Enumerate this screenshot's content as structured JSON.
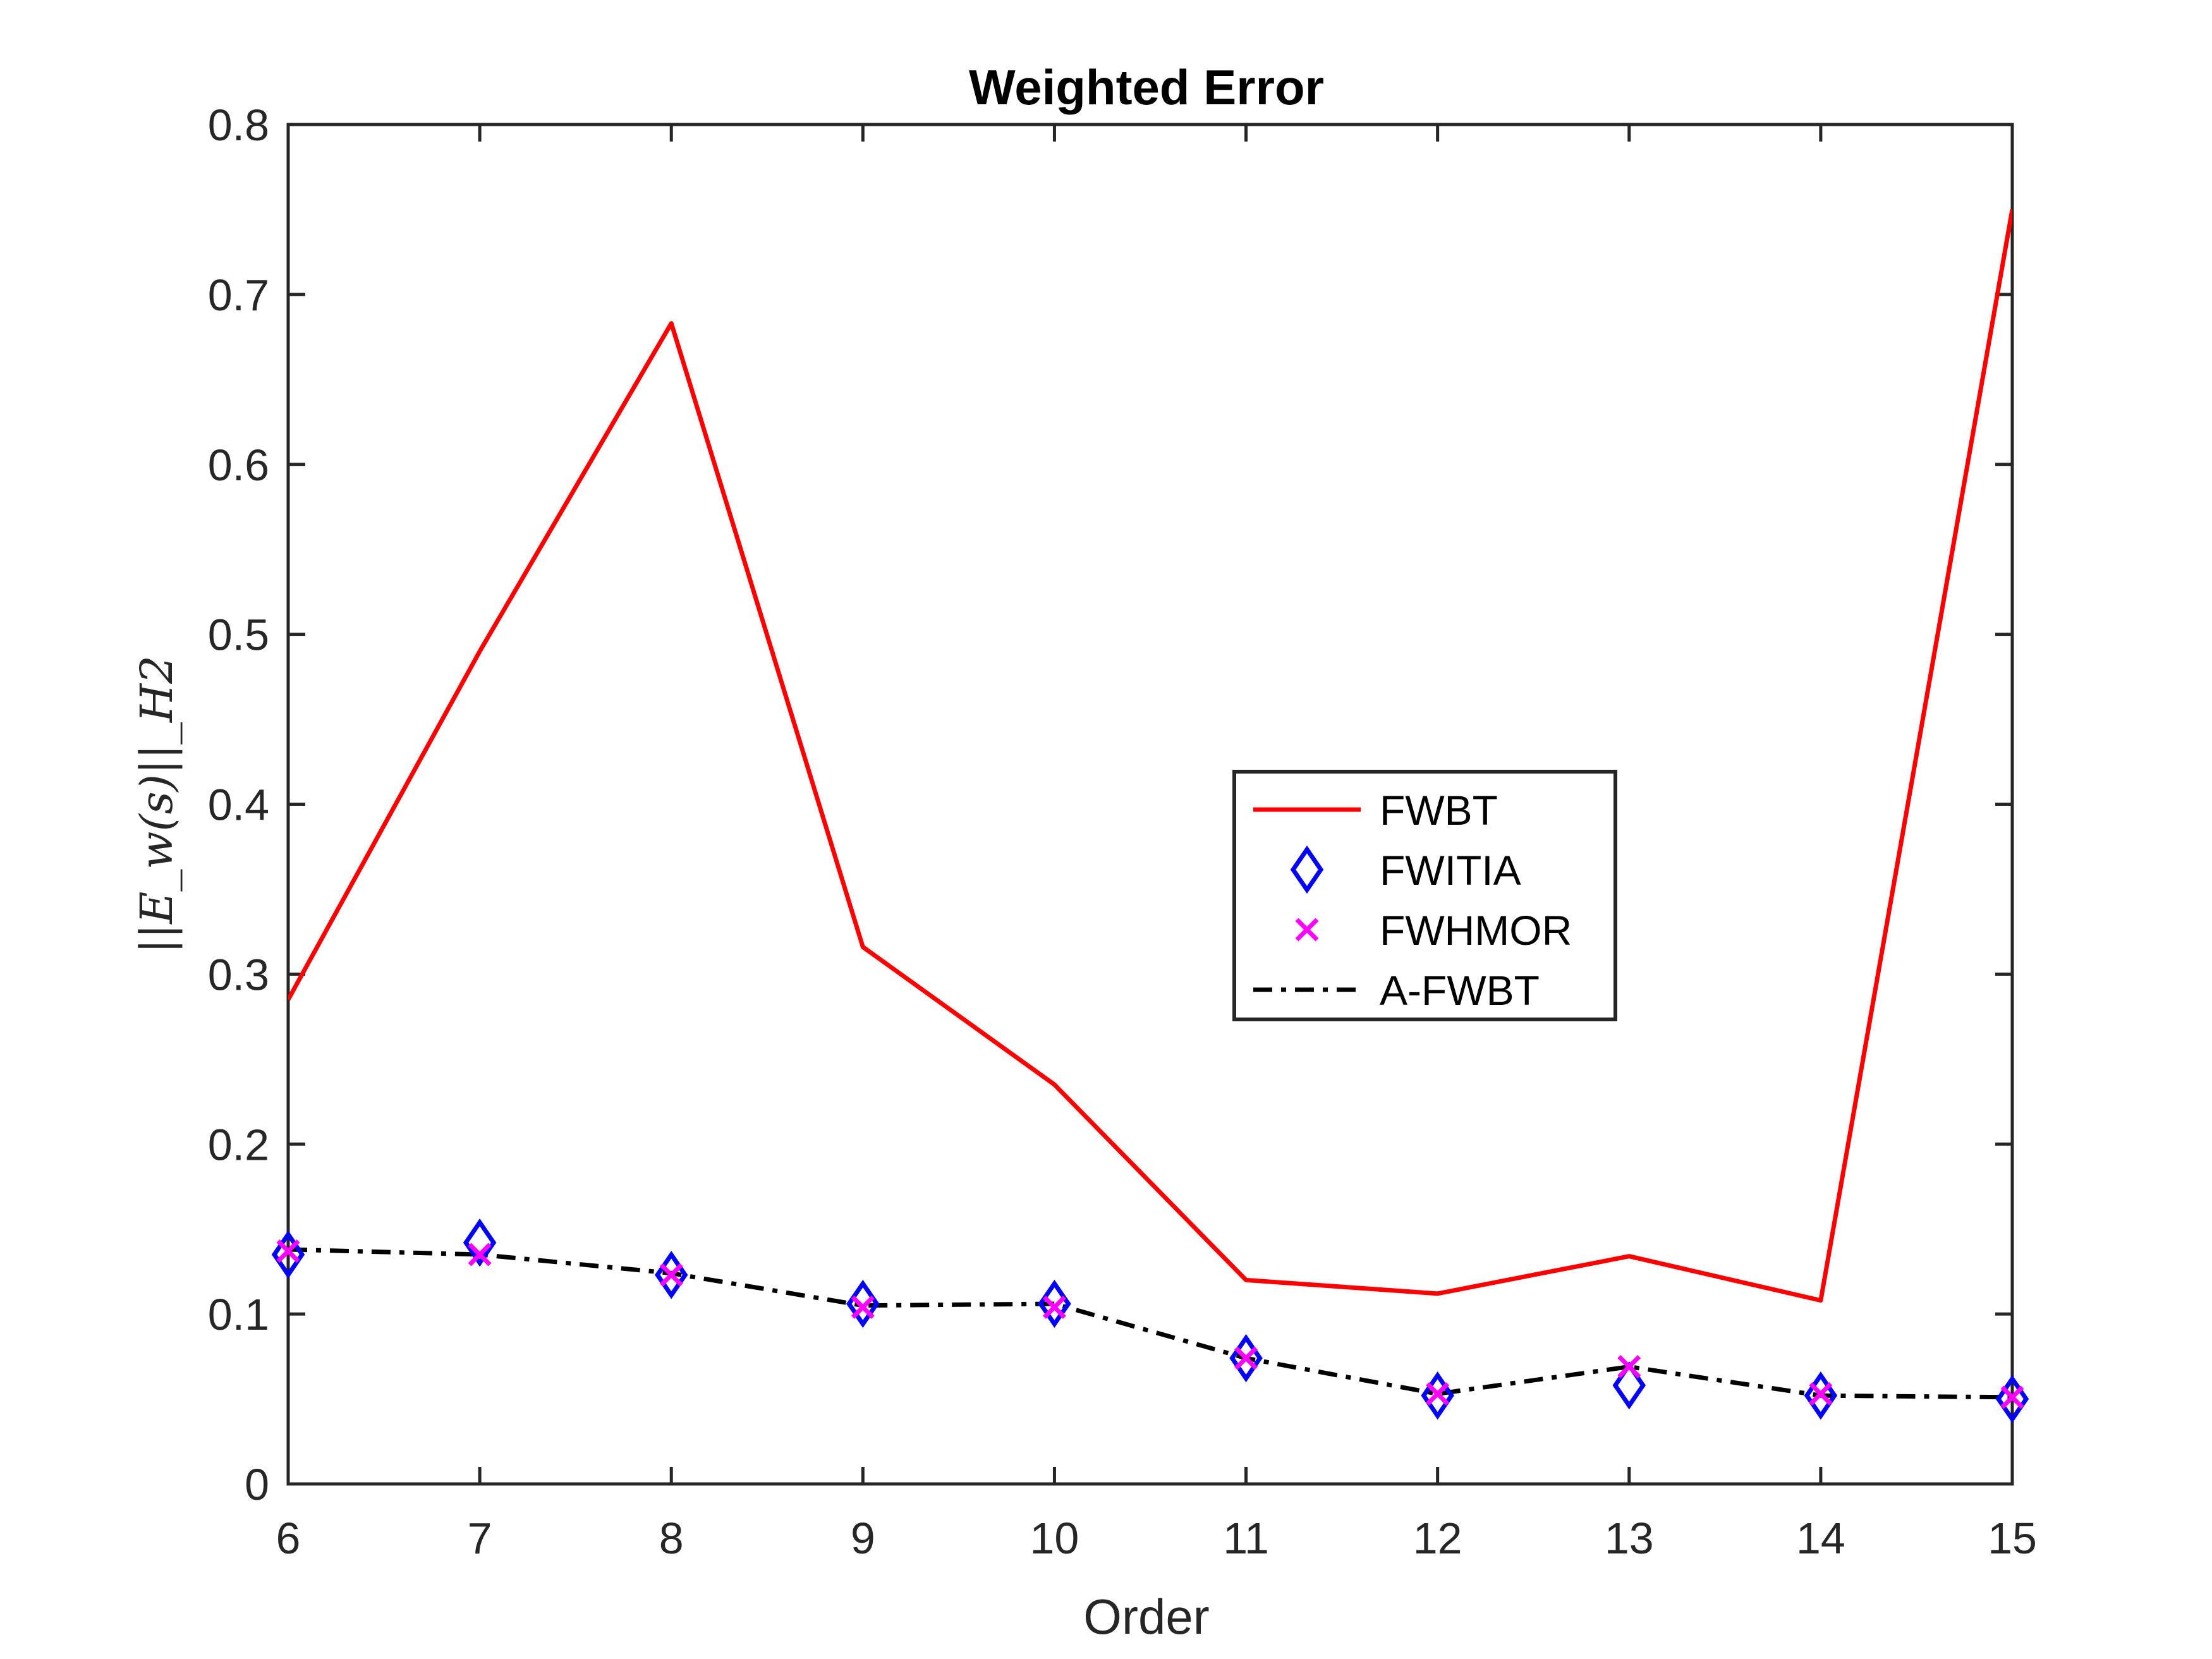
{
  "chart_data": {
    "type": "line",
    "title": "Weighted Error",
    "xlabel": "Order",
    "ylabel": "||E_w(s)||_H2",
    "xlim": [
      6,
      15
    ],
    "ylim": [
      0,
      0.8
    ],
    "xticks": [
      6,
      7,
      8,
      9,
      10,
      11,
      12,
      13,
      14,
      15
    ],
    "yticks": [
      0,
      0.1,
      0.2,
      0.3,
      0.4,
      0.5,
      0.6,
      0.7,
      0.8
    ],
    "ytick_labels": [
      "0",
      "0.1",
      "0.2",
      "0.3",
      "0.4",
      "0.5",
      "0.6",
      "0.7",
      "0.8"
    ],
    "grid": false,
    "legend_position": "center-right",
    "x": [
      6,
      7,
      8,
      9,
      10,
      11,
      12,
      13,
      14,
      15
    ],
    "series": [
      {
        "name": "FWBT",
        "style": "solid-line",
        "color": "#ff0000",
        "values": [
          0.285,
          0.49,
          0.683,
          0.316,
          0.235,
          0.12,
          0.112,
          0.134,
          0.108,
          0.75
        ]
      },
      {
        "name": "FWITIA",
        "style": "diamond-marker",
        "color": "#0000ff",
        "values": [
          0.135,
          0.142,
          0.123,
          0.106,
          0.106,
          0.074,
          0.052,
          0.058,
          0.052,
          0.05
        ]
      },
      {
        "name": "FWHMOR",
        "style": "x-marker",
        "color": "#ff00ff",
        "values": [
          0.137,
          0.135,
          0.123,
          0.104,
          0.104,
          0.074,
          0.053,
          0.069,
          0.053,
          0.051
        ]
      },
      {
        "name": "A-FWBT",
        "style": "dash-dot-line",
        "color": "#000000",
        "values": [
          0.138,
          0.135,
          0.124,
          0.105,
          0.106,
          0.074,
          0.053,
          0.069,
          0.052,
          0.051
        ]
      }
    ]
  }
}
